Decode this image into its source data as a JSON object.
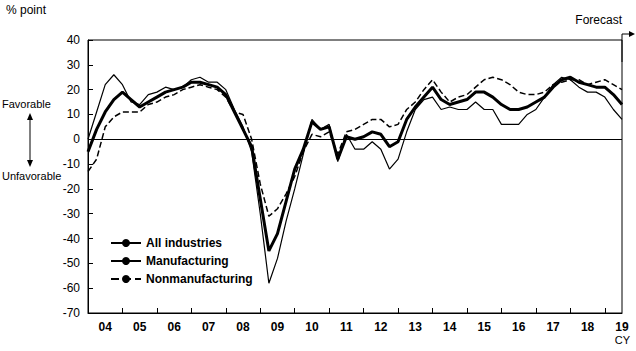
{
  "chart_data": {
    "type": "line",
    "y_label": "% point",
    "annotations": [
      "Favorable",
      "Unfavorable",
      "Forecast",
      "CY"
    ],
    "categories": [
      null,
      null,
      "04",
      null,
      null,
      null,
      "05",
      null,
      null,
      null,
      "06",
      null,
      null,
      null,
      "07",
      null,
      null,
      null,
      "08",
      null,
      null,
      null,
      "09",
      null,
      null,
      null,
      "10",
      null,
      null,
      null,
      "11",
      null,
      null,
      null,
      "12",
      null,
      null,
      null,
      "13",
      null,
      null,
      null,
      "14",
      null,
      null,
      null,
      "15",
      null,
      null,
      null,
      "16",
      null,
      null,
      null,
      "17",
      null,
      null,
      null,
      "18",
      null,
      null,
      null,
      "19"
    ],
    "series": [
      {
        "name": "All industries",
        "color": "#000000",
        "line_style": "solid",
        "values": [
          -5,
          4,
          11,
          16,
          19,
          16,
          13,
          15,
          17,
          19,
          20,
          21,
          23,
          23,
          22,
          21,
          18,
          11,
          4,
          -3,
          -24,
          -45,
          -38,
          -25,
          -12,
          -4,
          7,
          4,
          5,
          -8,
          1,
          0,
          1,
          3,
          2,
          -3,
          -1,
          8,
          13,
          17,
          21,
          16,
          14,
          15,
          16,
          19,
          19,
          17,
          14,
          12,
          12,
          13,
          15,
          17,
          21,
          24,
          25,
          23,
          22,
          21,
          21,
          18,
          14
        ]
      },
      {
        "name": "Manufacturing",
        "color": "#000000",
        "line_style": "solid",
        "values": [
          0,
          11,
          22,
          26,
          22,
          15,
          14,
          18,
          19,
          21,
          20,
          21,
          24,
          25,
          23,
          23,
          20,
          12,
          5,
          -5,
          -30,
          -58,
          -48,
          -33,
          -20,
          -6,
          8,
          4,
          6,
          -9,
          2,
          -4,
          -4,
          -1,
          -4,
          -12,
          -8,
          3,
          12,
          16,
          17,
          12,
          13,
          12,
          12,
          15,
          12,
          12,
          6,
          6,
          6,
          10,
          12,
          17,
          22,
          25,
          24,
          21,
          19,
          19,
          17,
          12,
          8
        ]
      },
      {
        "name": "Nonmanufacturing",
        "color": "#000000",
        "line_style": "dashed",
        "values": [
          -13,
          -8,
          5,
          9,
          11,
          11,
          11,
          14,
          15,
          17,
          18,
          20,
          21,
          22,
          21,
          20,
          17,
          11,
          10,
          0,
          -18,
          -31,
          -28,
          -22,
          -15,
          -5,
          2,
          1,
          3,
          -6,
          3,
          4,
          6,
          8,
          8,
          5,
          6,
          12,
          15,
          20,
          24,
          19,
          15,
          17,
          18,
          21,
          24,
          25,
          24,
          22,
          19,
          18,
          18,
          19,
          22,
          23,
          24,
          24,
          22,
          23,
          24,
          22,
          20
        ]
      }
    ],
    "ylim": [
      -70,
      40
    ],
    "yticks": [
      -70,
      -60,
      -50,
      -40,
      -30,
      -20,
      -10,
      0,
      10,
      20,
      30,
      40
    ],
    "grid": false,
    "legend": "lower left"
  }
}
